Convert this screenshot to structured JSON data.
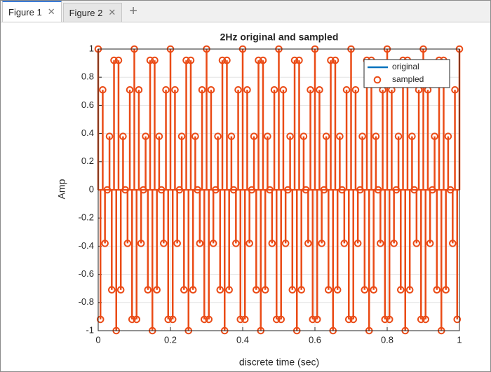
{
  "tabs": [
    "Figure 1",
    "Figure 2"
  ],
  "chart_data": {
    "type": "stem",
    "title": "2Hz original and sampled",
    "xlabel": "discrete time (sec)",
    "ylabel": "Amp",
    "xlim": [
      0,
      1
    ],
    "xticks": [
      0,
      0.2,
      0.4,
      0.6,
      0.8,
      1
    ],
    "ylim": [
      -1,
      1
    ],
    "yticks": [
      -1,
      -0.8,
      -0.6,
      -0.4,
      -0.2,
      0,
      0.2,
      0.4,
      0.6,
      0.8,
      1
    ],
    "grid": true,
    "legend": "northeast",
    "series": [
      {
        "name": "original",
        "color": "#0072bd"
      },
      {
        "name": "sampled",
        "color": "#ea4b16",
        "x": [
          0,
          0.00625,
          0.0125,
          0.01875,
          0.025,
          0.03125,
          0.0375,
          0.04375,
          0.05,
          0.05625,
          0.0625,
          0.06875,
          0.075,
          0.08125,
          0.0875,
          0.09375,
          0.1,
          0.10625,
          0.1125,
          0.11875,
          0.125,
          0.13125,
          0.1375,
          0.14375,
          0.15,
          0.15625,
          0.1625,
          0.16875,
          0.175,
          0.18125,
          0.1875,
          0.19375,
          0.2,
          0.20625,
          0.2125,
          0.21875,
          0.225,
          0.23125,
          0.2375,
          0.24375,
          0.25,
          0.25625,
          0.2625,
          0.26875,
          0.275,
          0.28125,
          0.2875,
          0.29375,
          0.3,
          0.30625,
          0.3125,
          0.31875,
          0.325,
          0.33125,
          0.3375,
          0.34375,
          0.35,
          0.35625,
          0.3625,
          0.36875,
          0.375,
          0.38125,
          0.3875,
          0.39375,
          0.4,
          0.40625,
          0.4125,
          0.41875,
          0.425,
          0.43125,
          0.4375,
          0.44375,
          0.45,
          0.45625,
          0.4625,
          0.46875,
          0.475,
          0.48125,
          0.4875,
          0.49375,
          0.5,
          0.50625,
          0.5125,
          0.51875,
          0.525,
          0.53125,
          0.5375,
          0.54375,
          0.55,
          0.55625,
          0.5625,
          0.56875,
          0.575,
          0.58125,
          0.5875,
          0.59375,
          0.6,
          0.60625,
          0.6125,
          0.61875,
          0.625,
          0.63125,
          0.6375,
          0.64375,
          0.65,
          0.65625,
          0.6625,
          0.66875,
          0.675,
          0.68125,
          0.6875,
          0.69375,
          0.7,
          0.70625,
          0.7125,
          0.71875,
          0.725,
          0.73125,
          0.7375,
          0.74375,
          0.75,
          0.75625,
          0.7625,
          0.76875,
          0.775,
          0.78125,
          0.7875,
          0.79375,
          0.8,
          0.80625,
          0.8125,
          0.81875,
          0.825,
          0.83125,
          0.8375,
          0.84375,
          0.85,
          0.85625,
          0.8625,
          0.86875,
          0.875,
          0.88125,
          0.8875,
          0.89375,
          0.9,
          0.90625,
          0.9125,
          0.91875,
          0.925,
          0.93125,
          0.9375,
          0.94375,
          0.95,
          0.95625,
          0.9625,
          0.96875,
          0.975,
          0.98125,
          0.9875,
          0.99375,
          1
        ],
        "values": [
          1,
          -0.92,
          0.71,
          -0.38,
          0,
          0.38,
          -0.71,
          0.92,
          -1,
          0.92,
          -0.71,
          0.38,
          0,
          -0.38,
          0.71,
          -0.92,
          1,
          -0.92,
          0.71,
          -0.38,
          0,
          0.38,
          -0.71,
          0.92,
          -1,
          0.92,
          -0.71,
          0.38,
          0,
          -0.38,
          0.71,
          -0.92,
          1,
          -0.92,
          0.71,
          -0.38,
          0,
          0.38,
          -0.71,
          0.92,
          -1,
          0.92,
          -0.71,
          0.38,
          0,
          -0.38,
          0.71,
          -0.92,
          1,
          -0.92,
          0.71,
          -0.38,
          0,
          0.38,
          -0.71,
          0.92,
          -1,
          0.92,
          -0.71,
          0.38,
          0,
          -0.38,
          0.71,
          -0.92,
          1,
          -0.92,
          0.71,
          -0.38,
          0,
          0.38,
          -0.71,
          0.92,
          -1,
          0.92,
          -0.71,
          0.38,
          0,
          -0.38,
          0.71,
          -0.92,
          1,
          -0.92,
          0.71,
          -0.38,
          0,
          0.38,
          -0.71,
          0.92,
          -1,
          0.92,
          -0.71,
          0.38,
          0,
          -0.38,
          0.71,
          -0.92,
          1,
          -0.92,
          0.71,
          -0.38,
          0,
          0.38,
          -0.71,
          0.92,
          -1,
          0.92,
          -0.71,
          0.38,
          0,
          -0.38,
          0.71,
          -0.92,
          1,
          -0.92,
          0.71,
          -0.38,
          0,
          0.38,
          -0.71,
          0.92,
          -1,
          0.92,
          -0.71,
          0.38,
          0,
          -0.38,
          0.71,
          -0.92,
          1,
          -0.92,
          0.71,
          -0.38,
          0,
          0.38,
          -0.71,
          0.92,
          -1,
          0.92,
          -0.71,
          0.38,
          0,
          -0.38,
          0.71,
          -0.92,
          1,
          -0.92,
          0.71,
          -0.38,
          0,
          0.38,
          -0.71,
          0.92,
          -1,
          0.92,
          -0.71,
          0.38,
          0,
          -0.38,
          0.71,
          -0.92,
          1
        ]
      }
    ]
  }
}
